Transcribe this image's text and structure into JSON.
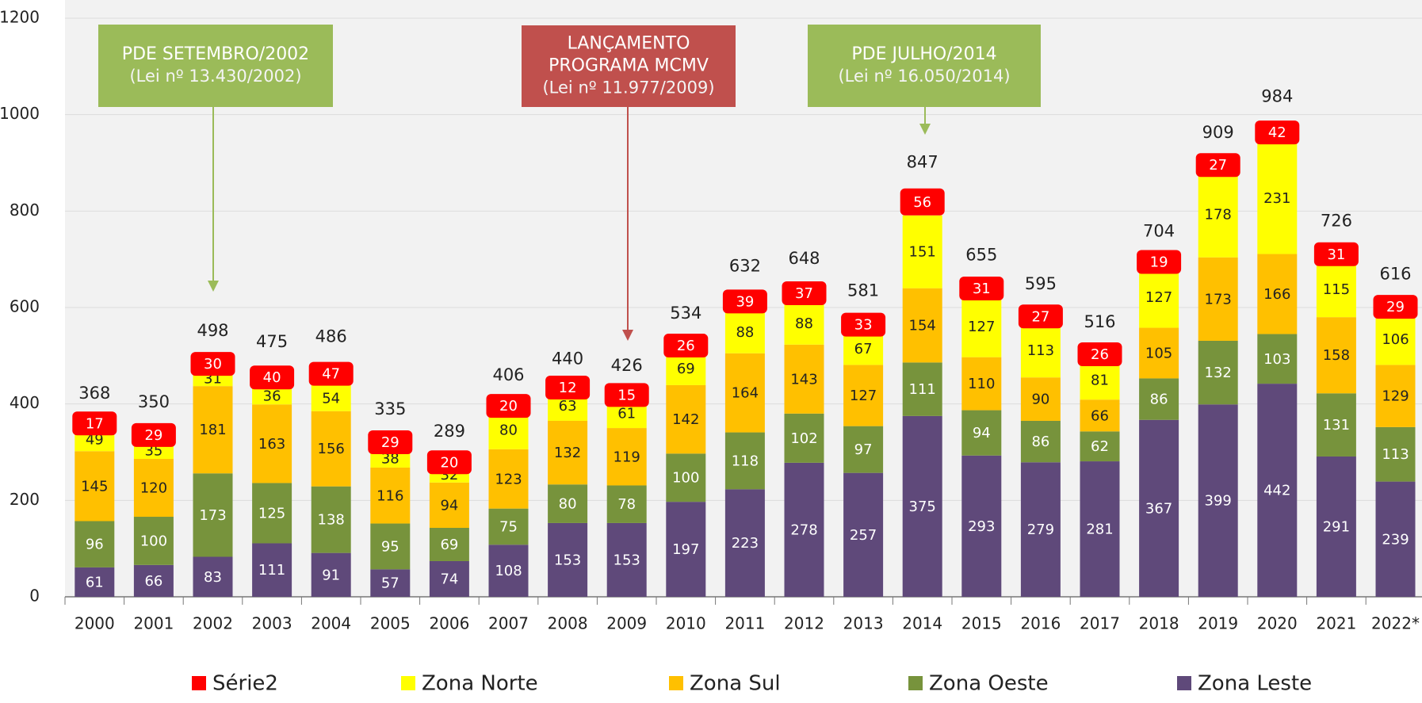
{
  "chart_data": {
    "type": "stacked_bar",
    "categories": [
      "2000",
      "2001",
      "2002",
      "2003",
      "2004",
      "2005",
      "2006",
      "2007",
      "2008",
      "2009",
      "2010",
      "2011",
      "2012",
      "2013",
      "2014",
      "2015",
      "2016",
      "2017",
      "2018",
      "2019",
      "2020",
      "2021",
      "2022*"
    ],
    "series": [
      {
        "name": "Zona Leste",
        "color": "#5f497a",
        "values": [
          61,
          66,
          83,
          111,
          91,
          57,
          74,
          108,
          153,
          153,
          197,
          223,
          278,
          257,
          375,
          293,
          279,
          281,
          367,
          399,
          442,
          291,
          239
        ]
      },
      {
        "name": "Zona Oeste",
        "color": "#77933c",
        "values": [
          96,
          100,
          173,
          125,
          138,
          95,
          69,
          75,
          80,
          78,
          100,
          118,
          102,
          97,
          111,
          94,
          86,
          62,
          86,
          132,
          103,
          131,
          113
        ]
      },
      {
        "name": "Zona Sul",
        "color": "#ffc000",
        "values": [
          145,
          120,
          181,
          163,
          156,
          116,
          94,
          123,
          132,
          119,
          142,
          164,
          143,
          127,
          154,
          110,
          90,
          66,
          105,
          173,
          166,
          158,
          129
        ]
      },
      {
        "name": "Zona Norte",
        "color": "#ffff00",
        "values": [
          49,
          35,
          31,
          36,
          54,
          38,
          32,
          80,
          63,
          61,
          69,
          88,
          88,
          67,
          151,
          127,
          113,
          81,
          127,
          178,
          231,
          115,
          106
        ]
      },
      {
        "name": "Série2",
        "color": "#ff0000",
        "values": [
          17,
          29,
          30,
          40,
          47,
          29,
          20,
          20,
          12,
          15,
          26,
          39,
          37,
          33,
          56,
          31,
          27,
          26,
          19,
          27,
          42,
          31,
          29
        ]
      }
    ],
    "totals": [
      368,
      350,
      498,
      475,
      486,
      335,
      289,
      406,
      440,
      426,
      534,
      632,
      648,
      581,
      847,
      655,
      595,
      516,
      704,
      909,
      984,
      726,
      616
    ],
    "ylim": [
      0,
      1200
    ],
    "yticks": [
      0,
      200,
      400,
      600,
      800,
      1000,
      1200
    ],
    "grid": true,
    "annotations": [
      {
        "lines": [
          "PDE SETEMBRO/2002",
          "(Lei nº 13.430/2002)"
        ],
        "color": "#9bbb59"
      },
      {
        "lines": [
          "LANÇAMENTO",
          "PROGRAMA MCMV",
          "(Lei nº 11.977/2009)"
        ],
        "color": "#c0504d"
      },
      {
        "lines": [
          "PDE JULHO/2014",
          "(Lei nº 16.050/2014)"
        ],
        "color": "#9bbb59"
      }
    ]
  }
}
